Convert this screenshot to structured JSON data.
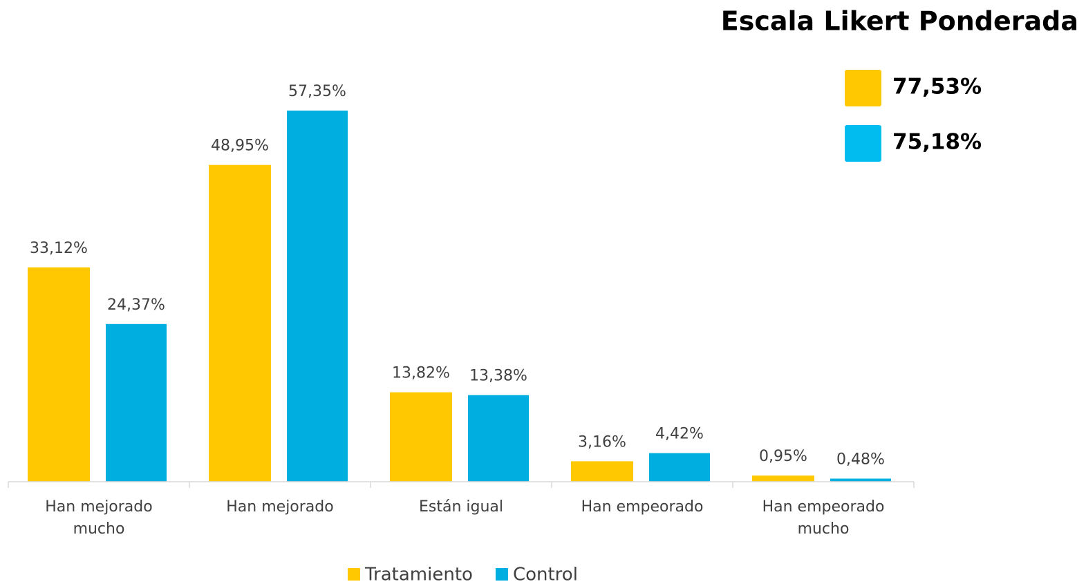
{
  "chart_data": {
    "type": "bar",
    "categories": [
      "Han mejorado mucho",
      "Han mejorado",
      "Están igual",
      "Han empeorado",
      "Han empeorado mucho"
    ],
    "series": [
      {
        "name": "Tratamiento",
        "color": "#FFC800",
        "values": [
          33.12,
          48.95,
          13.82,
          3.16,
          0.95
        ],
        "value_labels": [
          "33,12%",
          "48,95%",
          "13,82%",
          "3,16%",
          "0,95%"
        ]
      },
      {
        "name": "Control",
        "color": "#00AEDF",
        "values": [
          24.37,
          57.35,
          13.38,
          4.42,
          0.48
        ],
        "value_labels": [
          "24,37%",
          "57,35%",
          "13,38%",
          "4,42%",
          "0,48%"
        ]
      }
    ],
    "legend": "bottom",
    "weighted": {
      "title": "Escala Likert Ponderada",
      "values": [
        77.53,
        75.18
      ],
      "value_labels": [
        "77,53%",
        "75,18%"
      ],
      "colors": [
        "#FFC800",
        "#00BCEF"
      ]
    }
  }
}
